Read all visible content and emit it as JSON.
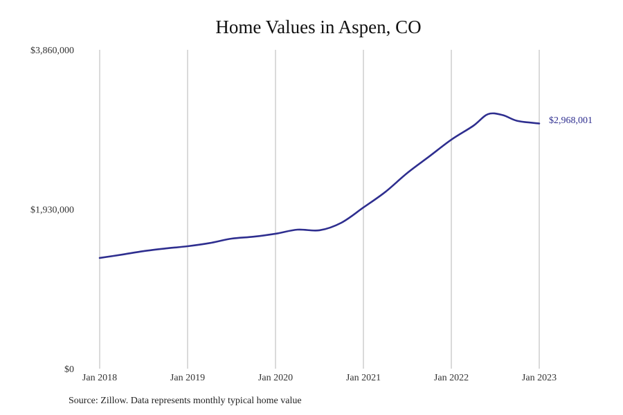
{
  "chart_data": {
    "type": "line",
    "title": "Home Values in Aspen, CO",
    "xlabel": "",
    "ylabel": "",
    "x_ticks": [
      "Jan 2018",
      "Jan 2019",
      "Jan 2020",
      "Jan 2021",
      "Jan 2022",
      "Jan 2023"
    ],
    "y_ticks": [
      "$0",
      "$1,930,000",
      "$3,860,000"
    ],
    "ylim": [
      0,
      3860000
    ],
    "grid": {
      "vertical": true,
      "horizontal": false
    },
    "line_color": "#2e2e8f",
    "series": [
      {
        "name": "Typical home value",
        "x": [
          "2018-01",
          "2018-04",
          "2018-07",
          "2018-10",
          "2019-01",
          "2019-04",
          "2019-07",
          "2019-10",
          "2020-01",
          "2020-04",
          "2020-07",
          "2020-10",
          "2021-01",
          "2021-04",
          "2021-07",
          "2021-10",
          "2022-01",
          "2022-04",
          "2022-06",
          "2022-08",
          "2022-10",
          "2023-01"
        ],
        "values": [
          1340000,
          1380000,
          1423000,
          1455000,
          1482000,
          1520000,
          1574000,
          1598000,
          1633000,
          1683000,
          1675000,
          1767000,
          1951000,
          2140000,
          2370000,
          2570000,
          2772000,
          2940000,
          3081000,
          3070000,
          3000000,
          2968001
        ]
      }
    ],
    "annotations": [
      {
        "text": "$2,968,001",
        "x": "2023-01",
        "y": 2968001
      }
    ]
  },
  "header": {
    "title": "Home Values in Aspen, CO"
  },
  "axes": {
    "y_labels": [
      "$3,860,000",
      "$1,930,000",
      "$0"
    ],
    "x_labels": [
      "Jan 2018",
      "Jan 2019",
      "Jan 2020",
      "Jan 2021",
      "Jan 2022",
      "Jan 2023"
    ]
  },
  "end_label": "$2,968,001",
  "footer": {
    "source": "Source: Zillow. Data represents monthly typical home value"
  }
}
